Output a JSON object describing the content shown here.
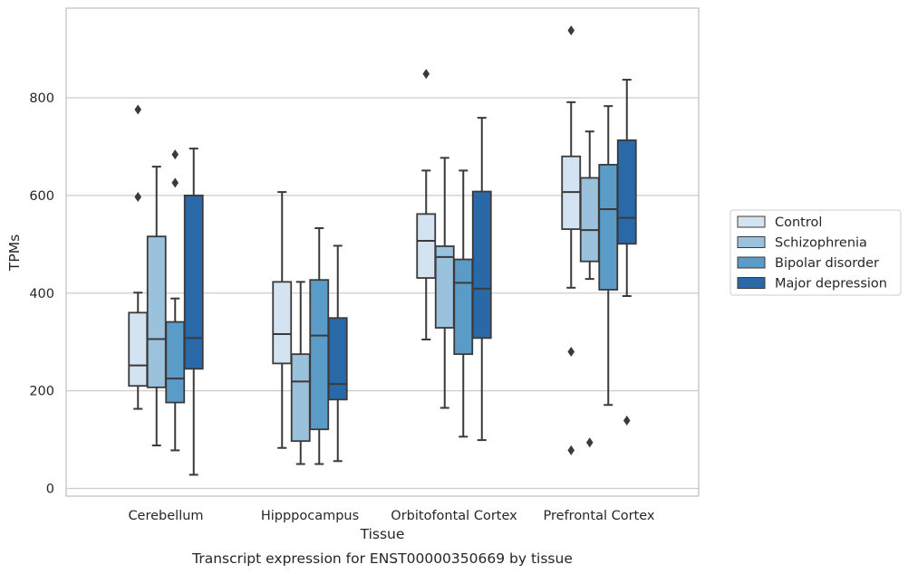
{
  "chart_data": {
    "type": "boxplot",
    "caption": "Transcript expression for ENST00000350669 by tissue",
    "xlabel": "Tissue",
    "ylabel": "TPMs",
    "ylim": [
      -15,
      985
    ],
    "yticks": [
      0,
      200,
      400,
      600,
      800
    ],
    "grid": "y",
    "legend_position": "right",
    "categories": [
      "Cerebellum",
      "Hipppocampus",
      "Orbitofontal Cortex",
      "Prefrontal Cortex"
    ],
    "series": [
      {
        "name": "Control",
        "color": "#d4e3f2",
        "boxes": [
          {
            "whislo": 163,
            "q1": 210,
            "med": 252,
            "q3": 360,
            "whishi": 401,
            "fliers": [
              776,
              597
            ]
          },
          {
            "whislo": 83,
            "q1": 256,
            "med": 316,
            "q3": 423,
            "whishi": 607,
            "fliers": []
          },
          {
            "whislo": 305,
            "q1": 431,
            "med": 507,
            "q3": 562,
            "whishi": 651,
            "fliers": [
              849
            ]
          },
          {
            "whislo": 411,
            "q1": 531,
            "med": 607,
            "q3": 680,
            "whishi": 791,
            "fliers": [
              938,
              280,
              78
            ]
          }
        ]
      },
      {
        "name": "Schizophrenia",
        "color": "#9ac2dd",
        "boxes": [
          {
            "whislo": 88,
            "q1": 207,
            "med": 306,
            "q3": 516,
            "whishi": 659,
            "fliers": []
          },
          {
            "whislo": 50,
            "q1": 97,
            "med": 219,
            "q3": 275,
            "whishi": 423,
            "fliers": []
          },
          {
            "whislo": 165,
            "q1": 329,
            "med": 474,
            "q3": 496,
            "whishi": 677,
            "fliers": []
          },
          {
            "whislo": 429,
            "q1": 465,
            "med": 529,
            "q3": 636,
            "whishi": 731,
            "fliers": [
              94
            ]
          }
        ]
      },
      {
        "name": "Bipolar disorder",
        "color": "#5b9bc8",
        "boxes": [
          {
            "whislo": 78,
            "q1": 176,
            "med": 225,
            "q3": 341,
            "whishi": 389,
            "fliers": [
              684,
              626
            ]
          },
          {
            "whislo": 50,
            "q1": 121,
            "med": 313,
            "q3": 427,
            "whishi": 533,
            "fliers": []
          },
          {
            "whislo": 106,
            "q1": 275,
            "med": 421,
            "q3": 469,
            "whishi": 651,
            "fliers": []
          },
          {
            "whislo": 171,
            "q1": 407,
            "med": 572,
            "q3": 663,
            "whishi": 783,
            "fliers": []
          }
        ]
      },
      {
        "name": "Major depression",
        "color": "#2a69a8",
        "boxes": [
          {
            "whislo": 28,
            "q1": 245,
            "med": 308,
            "q3": 600,
            "whishi": 696,
            "fliers": []
          },
          {
            "whislo": 56,
            "q1": 182,
            "med": 214,
            "q3": 349,
            "whishi": 497,
            "fliers": []
          },
          {
            "whislo": 99,
            "q1": 308,
            "med": 409,
            "q3": 608,
            "whishi": 759,
            "fliers": []
          },
          {
            "whislo": 394,
            "q1": 501,
            "med": 554,
            "q3": 713,
            "whishi": 837,
            "fliers": [
              139
            ]
          }
        ]
      }
    ]
  }
}
